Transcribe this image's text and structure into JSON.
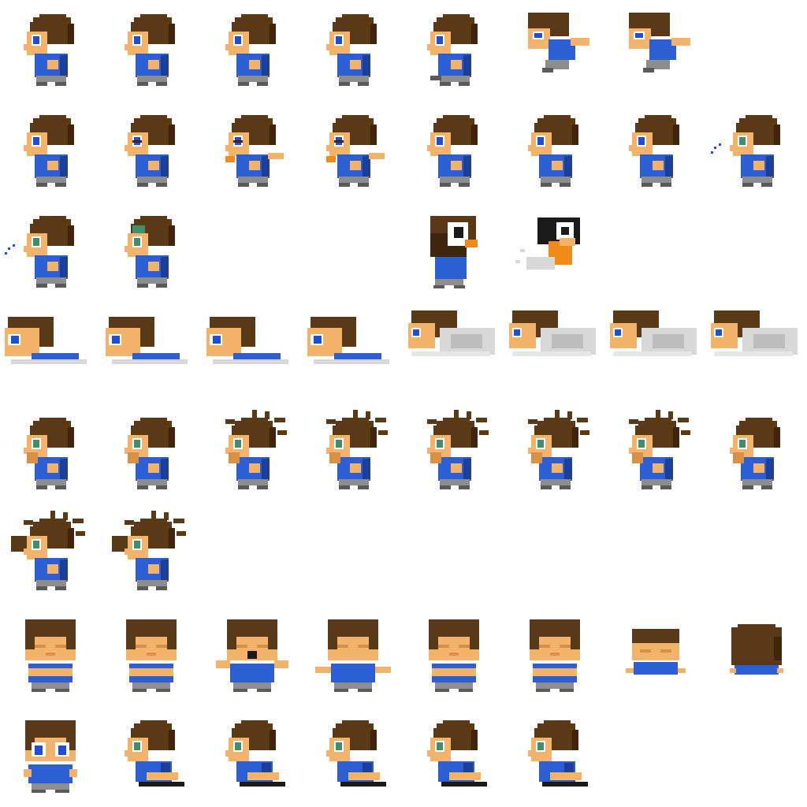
{
  "sheet": {
    "colors": {
      "background": "#ffffff",
      "hair": "#5a3a16",
      "hair_shadow": "#3f270c",
      "skin": "#f2b36a",
      "skin_shadow": "#d98f46",
      "eye": "#1f4fd8",
      "eye_green": "#3f8f6f",
      "eye_white": "#ffffff",
      "shirt": "#2c5fd2",
      "shirt_shadow": "#1c3f9a",
      "pants": "#8d8d8d",
      "shoe": "#5a5a5a",
      "dust": "#d8d8d8",
      "dark": "#1a1a1a",
      "orange": "#f08a18"
    },
    "rows": [
      {
        "frames": [
          {
            "pose": "walk-side"
          },
          {
            "pose": "walk-side"
          },
          {
            "pose": "walk-side"
          },
          {
            "pose": "walk-side"
          },
          {
            "pose": "run-side"
          },
          {
            "pose": "dive"
          },
          {
            "pose": "dive"
          }
        ]
      },
      {
        "frames": [
          {
            "pose": "stand-side"
          },
          {
            "pose": "stand-side-blink"
          },
          {
            "pose": "throw-side"
          },
          {
            "pose": "throw-side"
          },
          {
            "pose": "stand-side"
          },
          {
            "pose": "stand-side"
          },
          {
            "pose": "stand-side"
          },
          {
            "pose": "blow-side"
          }
        ]
      },
      {
        "frames": [
          {
            "pose": "blow-side"
          },
          {
            "pose": "look-up-side"
          },
          {
            "pose": "empty"
          },
          {
            "pose": "empty"
          },
          {
            "pose": "dark-front"
          },
          {
            "pose": "dark-dash"
          },
          {
            "pose": "empty"
          },
          {
            "pose": "empty"
          }
        ]
      },
      {
        "frames": [
          {
            "pose": "slide"
          },
          {
            "pose": "slide"
          },
          {
            "pose": "slide"
          },
          {
            "pose": "slide"
          },
          {
            "pose": "slide-dust"
          },
          {
            "pose": "slide-dust"
          },
          {
            "pose": "slide-dust"
          },
          {
            "pose": "slide-dust"
          }
        ]
      },
      {
        "frames": [
          {
            "pose": "hurt-side"
          },
          {
            "pose": "hurt-side"
          },
          {
            "pose": "spiky-side"
          },
          {
            "pose": "spiky-side"
          },
          {
            "pose": "spiky-side"
          },
          {
            "pose": "spiky-side"
          },
          {
            "pose": "spiky-side"
          },
          {
            "pose": "hurt-side"
          }
        ]
      },
      {
        "frames": [
          {
            "pose": "fall-side"
          },
          {
            "pose": "fall-side"
          },
          {
            "pose": "empty"
          },
          {
            "pose": "empty"
          },
          {
            "pose": "empty"
          },
          {
            "pose": "empty"
          },
          {
            "pose": "empty"
          },
          {
            "pose": "empty"
          }
        ]
      },
      {
        "frames": [
          {
            "pose": "front-arms-crossed"
          },
          {
            "pose": "front-arms-crossed"
          },
          {
            "pose": "front-shout"
          },
          {
            "pose": "front-arms-out"
          },
          {
            "pose": "front-arms-crossed"
          },
          {
            "pose": "front-arms-crossed"
          },
          {
            "pose": "front-low"
          },
          {
            "pose": "front-back"
          }
        ]
      },
      {
        "frames": [
          {
            "pose": "front-stand"
          },
          {
            "pose": "crawl-side"
          },
          {
            "pose": "crawl-side"
          },
          {
            "pose": "crawl-side"
          },
          {
            "pose": "crawl-side"
          },
          {
            "pose": "crawl-side"
          },
          {
            "pose": "empty"
          },
          {
            "pose": "empty"
          }
        ]
      }
    ]
  }
}
